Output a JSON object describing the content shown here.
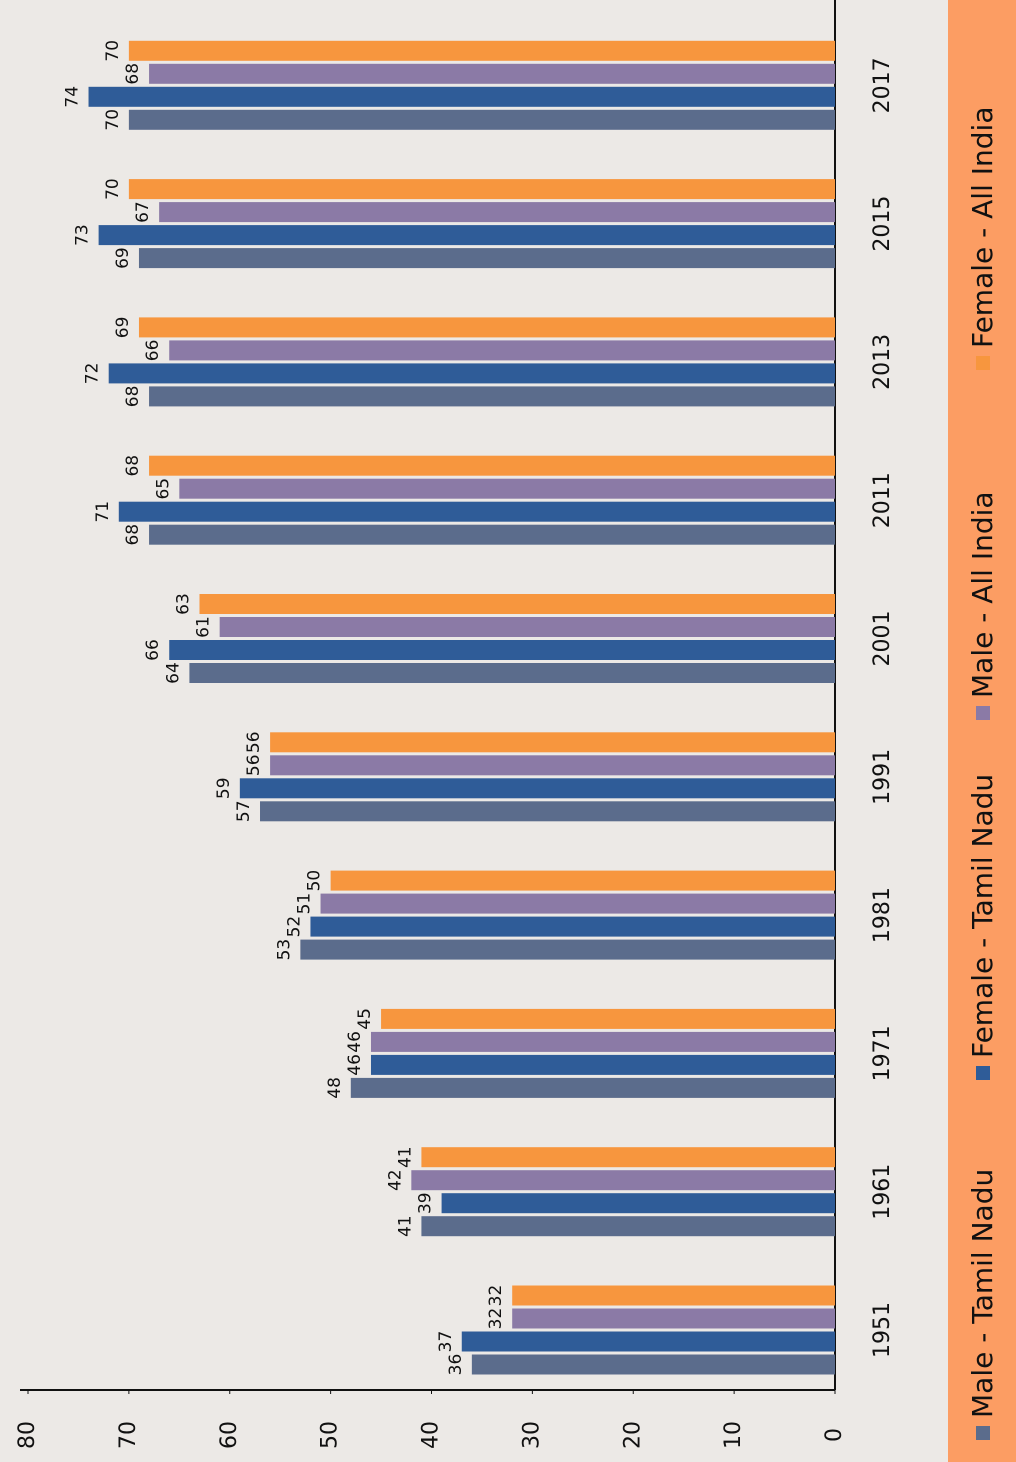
{
  "chart_data": {
    "type": "bar",
    "orientation": "rotated",
    "categories": [
      "1951",
      "1961",
      "1971",
      "1981",
      "1991",
      "2001",
      "2011",
      "2013",
      "2015",
      "2017"
    ],
    "series": [
      {
        "name": "Male - Tamil Nadu",
        "color": "#5b6c8c",
        "values": [
          36,
          41,
          48,
          53,
          57,
          64,
          68,
          68,
          69,
          70
        ]
      },
      {
        "name": "Female - Tamil Nadu",
        "color": "#2f5c98",
        "values": [
          37,
          39,
          46,
          52,
          59,
          66,
          71,
          72,
          73,
          74
        ]
      },
      {
        "name": "Male - All India",
        "color": "#8b7aa6",
        "values": [
          32,
          42,
          46,
          51,
          56,
          61,
          65,
          66,
          67,
          68
        ]
      },
      {
        "name": "Female - All India",
        "color": "#f7963e",
        "values": [
          32,
          41,
          45,
          50,
          56,
          63,
          68,
          69,
          70,
          70
        ]
      }
    ],
    "ylim": [
      0,
      80
    ],
    "yticks": [
      0,
      10,
      20,
      30,
      40,
      50,
      60,
      70,
      80
    ],
    "grid": false
  }
}
